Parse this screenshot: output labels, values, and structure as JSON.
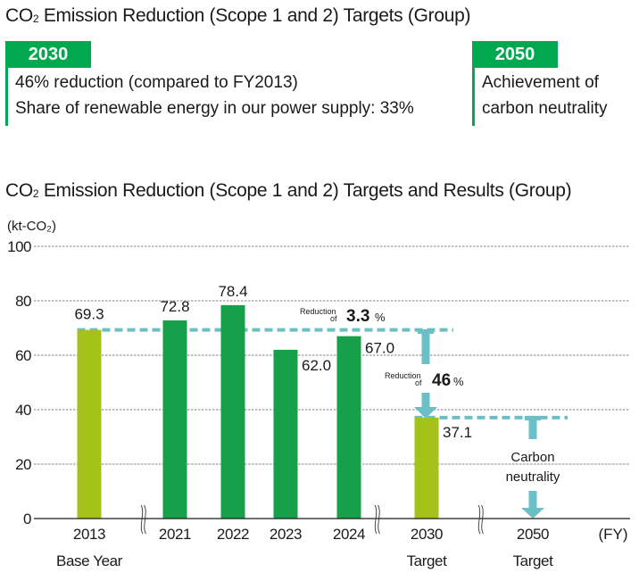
{
  "targets_section": {
    "title_prefix": "CO",
    "title_sub": "2",
    "title_rest": " Emission Reduction (Scope 1 and 2) Targets (Group)",
    "targets": [
      {
        "year": "2030",
        "lines": [
          "46% reduction (compared to FY2013)",
          "Share of renewable energy in our power supply: 33%"
        ]
      },
      {
        "year": "2050",
        "lines": [
          "Achievement of",
          "carbon neutrality"
        ]
      }
    ]
  },
  "chart_section": {
    "title_prefix": "CO",
    "title_sub": "2",
    "title_rest": " Emission Reduction (Scope 1 and 2) Targets and Results (Group)"
  },
  "colors": {
    "header_green": "#00A84F",
    "base_target_bar": "#A5C21B",
    "result_bar": "#16A04A",
    "annotation_teal": "#6BBFC7",
    "grid": "#999999"
  },
  "chart_data": {
    "type": "bar",
    "title": "CO2 Emission Reduction (Scope 1 and 2) Targets and Results (Group)",
    "ylabel": "(kt-CO2)",
    "xlabel": "(FY)",
    "ylim": [
      0,
      100
    ],
    "yticks": [
      0,
      20,
      40,
      60,
      80,
      100
    ],
    "grid": true,
    "categories": [
      "2013",
      "2021",
      "2022",
      "2023",
      "2024",
      "2030",
      "2050"
    ],
    "sublabels": [
      "Base Year",
      "",
      "",
      "",
      "",
      "Target",
      "Target"
    ],
    "values": [
      69.3,
      72.8,
      78.4,
      62.0,
      67.0,
      37.1,
      null
    ],
    "value_labels": [
      "69.3",
      "72.8",
      "78.4",
      "62.0",
      "67.0",
      "37.1",
      ""
    ],
    "bar_kinds": [
      "base",
      "result",
      "result",
      "result",
      "result",
      "target",
      "none"
    ],
    "axis_breaks_after": [
      "2013",
      "2024",
      "2030"
    ],
    "reference_lines": [
      {
        "value": 69.3,
        "from": "2013",
        "to": "2030"
      },
      {
        "value": 37.1,
        "from": "2030",
        "to": "2050"
      }
    ],
    "annotations": [
      {
        "small": "Reduction",
        "small2": "of",
        "big": "3.3",
        "unit": "%",
        "anchor": "2024",
        "value": 69.3
      },
      {
        "small": "Reduction",
        "small2": "of",
        "big": "46",
        "unit": "%",
        "anchor": "2030",
        "value": 53
      },
      {
        "line1": "Carbon",
        "line2": "neutrality",
        "anchor": "2050",
        "value": 19
      }
    ]
  }
}
